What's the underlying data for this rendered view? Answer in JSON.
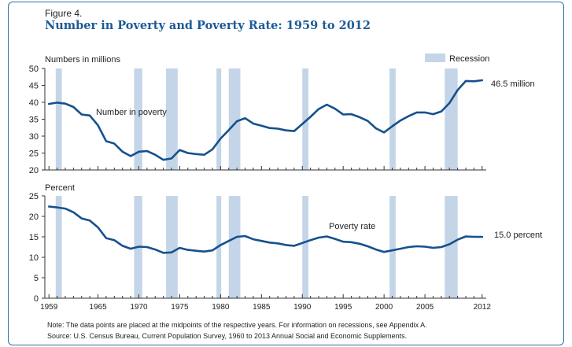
{
  "figure": {
    "label": "Figure 4.",
    "title": "Number in Poverty and Poverty Rate: 1959 to 2012",
    "note": "Note: The data points are placed at the midpoints of the respective years. For information on recessions, see Appendix A.",
    "source": "Source: U.S. Census Bureau, Current Population Survey, 1960 to 2013 Annual Social and Economic Supplements."
  },
  "colors": {
    "line": "#15518c",
    "recession": "#c5d5e8",
    "axis": "#333333",
    "title": "#1c5a96",
    "border": "#2f6fa8"
  },
  "legend": {
    "recession_label": "Recession"
  },
  "chart_data": [
    {
      "type": "line",
      "ylabel": "Numbers in millions",
      "ylim": [
        20,
        50
      ],
      "yticks": [
        20,
        25,
        30,
        35,
        40,
        45,
        50
      ],
      "xlim": [
        1959,
        2012
      ],
      "xtick_labels": [
        1959,
        1965,
        1970,
        1975,
        1980,
        1985,
        1990,
        1995,
        2000,
        2005,
        2012
      ],
      "series": [
        {
          "name": "Number in poverty",
          "end_label": "46.5 million",
          "x": [
            1959,
            1960,
            1961,
            1962,
            1963,
            1964,
            1965,
            1966,
            1967,
            1968,
            1969,
            1970,
            1971,
            1972,
            1973,
            1974,
            1975,
            1976,
            1977,
            1978,
            1979,
            1980,
            1981,
            1982,
            1983,
            1984,
            1985,
            1986,
            1987,
            1988,
            1989,
            1990,
            1991,
            1992,
            1993,
            1994,
            1995,
            1996,
            1997,
            1998,
            1999,
            2000,
            2001,
            2002,
            2003,
            2004,
            2005,
            2006,
            2007,
            2008,
            2009,
            2010,
            2011,
            2012
          ],
          "values": [
            39.5,
            39.9,
            39.6,
            38.6,
            36.4,
            36.1,
            33.2,
            28.5,
            27.8,
            25.4,
            24.1,
            25.4,
            25.6,
            24.5,
            23.0,
            23.4,
            25.9,
            25.0,
            24.7,
            24.5,
            26.1,
            29.3,
            31.8,
            34.4,
            35.3,
            33.7,
            33.1,
            32.4,
            32.2,
            31.7,
            31.5,
            33.6,
            35.7,
            38.0,
            39.3,
            38.1,
            36.4,
            36.5,
            35.6,
            34.5,
            32.3,
            31.1,
            32.9,
            34.6,
            35.9,
            37.0,
            37.0,
            36.5,
            37.3,
            39.8,
            43.6,
            46.3,
            46.2,
            46.5
          ]
        }
      ]
    },
    {
      "type": "line",
      "ylabel": "Percent",
      "ylim": [
        0,
        25
      ],
      "yticks": [
        0,
        5,
        10,
        15,
        20,
        25
      ],
      "xlim": [
        1959,
        2012
      ],
      "xtick_labels": [
        1959,
        1965,
        1970,
        1975,
        1980,
        1985,
        1990,
        1995,
        2000,
        2005,
        2012
      ],
      "series": [
        {
          "name": "Poverty rate",
          "end_label": "15.0 percent",
          "x": [
            1959,
            1960,
            1961,
            1962,
            1963,
            1964,
            1965,
            1966,
            1967,
            1968,
            1969,
            1970,
            1971,
            1972,
            1973,
            1974,
            1975,
            1976,
            1977,
            1978,
            1979,
            1980,
            1981,
            1982,
            1983,
            1984,
            1985,
            1986,
            1987,
            1988,
            1989,
            1990,
            1991,
            1992,
            1993,
            1994,
            1995,
            1996,
            1997,
            1998,
            1999,
            2000,
            2001,
            2002,
            2003,
            2004,
            2005,
            2006,
            2007,
            2008,
            2009,
            2010,
            2011,
            2012
          ],
          "values": [
            22.4,
            22.2,
            21.9,
            21.0,
            19.5,
            19.0,
            17.3,
            14.7,
            14.2,
            12.8,
            12.1,
            12.6,
            12.5,
            11.9,
            11.1,
            11.2,
            12.3,
            11.8,
            11.6,
            11.4,
            11.7,
            13.0,
            14.0,
            15.0,
            15.2,
            14.4,
            14.0,
            13.6,
            13.4,
            13.0,
            12.8,
            13.5,
            14.2,
            14.8,
            15.1,
            14.5,
            13.8,
            13.7,
            13.3,
            12.7,
            11.9,
            11.3,
            11.7,
            12.1,
            12.5,
            12.7,
            12.6,
            12.3,
            12.5,
            13.2,
            14.3,
            15.1,
            15.0,
            15.0
          ]
        }
      ]
    }
  ],
  "recessions": [
    [
      1960.33,
      1961.08
    ],
    [
      1969.92,
      1970.92
    ],
    [
      1973.83,
      1975.25
    ],
    [
      1980.0,
      1980.58
    ],
    [
      1981.5,
      1982.92
    ],
    [
      1990.5,
      1991.25
    ],
    [
      2001.17,
      2001.92
    ],
    [
      2007.92,
      2009.5
    ]
  ]
}
